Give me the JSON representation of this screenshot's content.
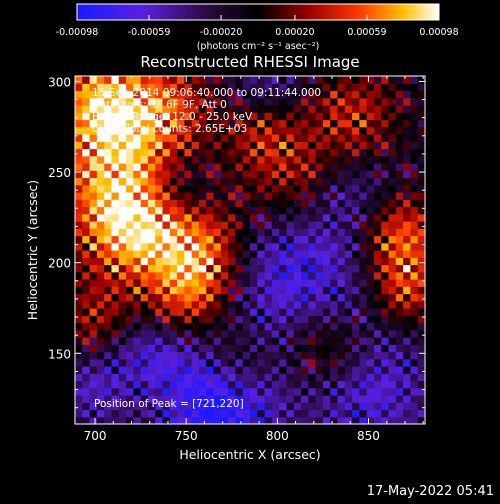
{
  "chart_data": {
    "type": "heatmap",
    "title": "Reconstructed RHESSI Image",
    "xlabel": "Heliocentric X (arcsec)",
    "ylabel": "Heliocentric Y (arcsec)",
    "xlim": [
      689,
      881
    ],
    "ylim": [
      111,
      303
    ],
    "xticks": [
      700,
      750,
      800,
      850
    ],
    "yticks": [
      150,
      200,
      250,
      300
    ],
    "colorbar": {
      "colormap": "blue-purple-black-red-yellow-white",
      "range": [
        -0.00098,
        0.00098
      ],
      "ticks": [
        "-0.00098",
        "-0.00059",
        "-0.00020",
        "0.00020",
        "0.00059",
        "0.00098"
      ],
      "tick_values": [
        -0.00098,
        -0.00059,
        -0.0002,
        0.0002,
        0.00059,
        0.00098
      ],
      "label": "(photons cm⁻² s⁻¹ asec⁻²)"
    },
    "annotations": [
      "15-Sep-2014 09:06:40.000 to 09:11:44.000",
      "Detectors: 3F 6F 9F, Att 0",
      "Energy Range: 12.0 - 25.0 keV",
      "Clean    Total counts: 2.65E+03"
    ],
    "peak_text": "Position of Peak = [721,220]",
    "peak_position": [
      721,
      220
    ],
    "grid": false
  },
  "footer": {
    "timestamp": "17-May-2022 05:41"
  },
  "colors": {
    "background": "#000000",
    "text": "#ffffff"
  }
}
